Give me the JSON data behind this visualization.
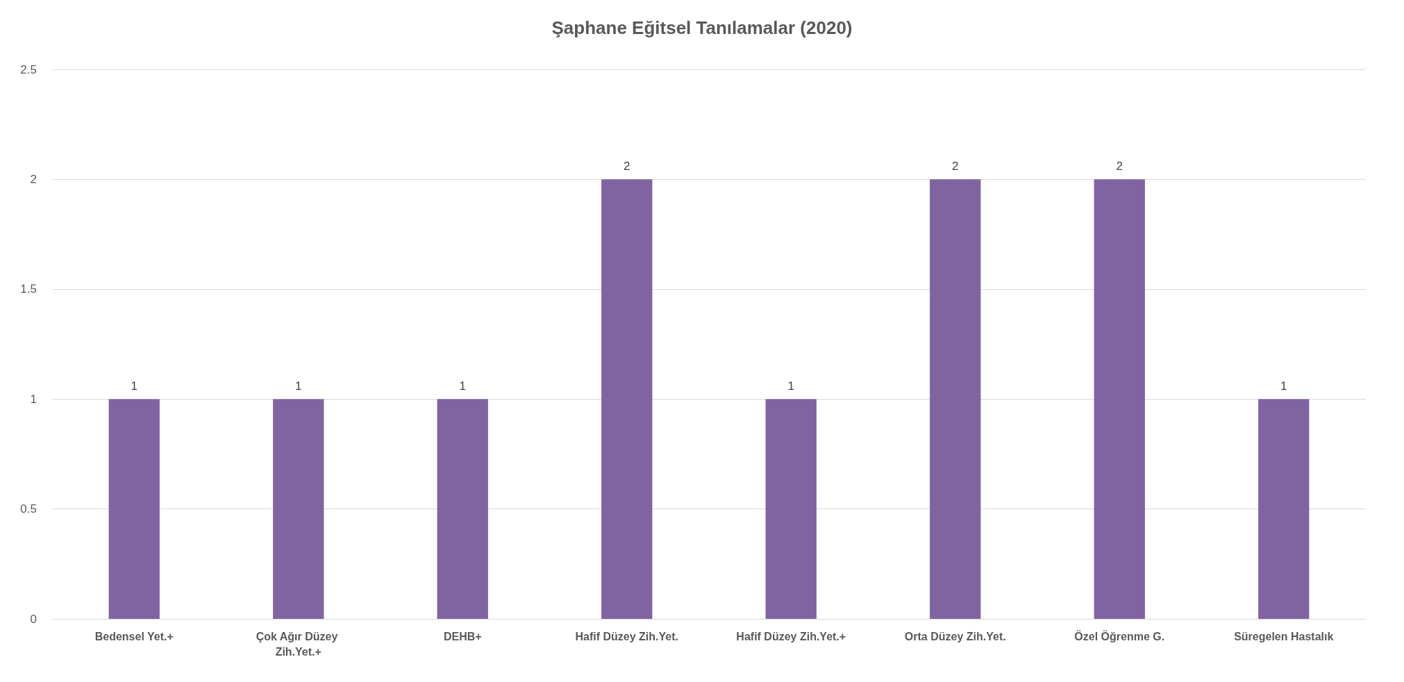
{
  "chart_data": {
    "type": "bar",
    "title": "Şaphane Eğitsel Tanılamalar (2020)",
    "categories": [
      "Bedensel Yet.+",
      "Çok Ağır Düzey Zih.Yet.+",
      "DEHB+",
      "Hafif Düzey Zih.Yet.",
      "Hafif Düzey Zih.Yet.+",
      "Orta Düzey Zih.Yet.",
      "Özel Öğrenme G.",
      "Süregelen Hastalık"
    ],
    "values": [
      1,
      1,
      1,
      2,
      1,
      2,
      2,
      1
    ],
    "color": "#8064a2",
    "ylim": [
      0,
      2.5
    ],
    "yticks": [
      0,
      0.5,
      1,
      1.5,
      2,
      2.5
    ],
    "grid": "y",
    "data_labels": true
  }
}
